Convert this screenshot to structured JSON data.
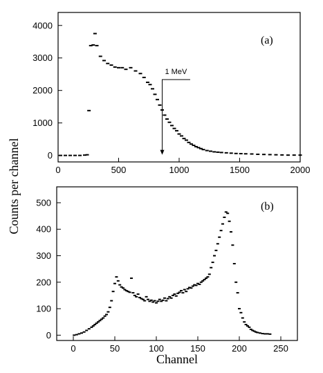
{
  "chart_data": [
    {
      "type": "scatter",
      "panel_label": "(a)",
      "xlabel": "",
      "ylabel": "",
      "xlim": [
        0,
        2000
      ],
      "ylim": [
        -200,
        4400
      ],
      "x_ticks": [
        0,
        500,
        1000,
        1500,
        2000
      ],
      "y_ticks": [
        0,
        1000,
        2000,
        3000,
        4000
      ],
      "x_tick_labels": [
        "0",
        "500",
        "1000",
        "1500",
        "2000"
      ],
      "y_tick_labels": [
        "0",
        "1000",
        "2000",
        "3000",
        "4000"
      ],
      "annotation": {
        "text": "1 MeV",
        "x": 860,
        "y": 0
      },
      "series": [
        {
          "points": [
            [
              20,
              0
            ],
            [
              60,
              0
            ],
            [
              100,
              0
            ],
            [
              140,
              0
            ],
            [
              180,
              0
            ],
            [
              220,
              10
            ],
            [
              240,
              20
            ],
            [
              255,
              1380
            ],
            [
              270,
              3380
            ],
            [
              290,
              3400
            ],
            [
              305,
              3750
            ],
            [
              320,
              3380
            ],
            [
              350,
              3050
            ],
            [
              380,
              2920
            ],
            [
              410,
              2830
            ],
            [
              440,
              2780
            ],
            [
              470,
              2720
            ],
            [
              500,
              2700
            ],
            [
              530,
              2700
            ],
            [
              560,
              2650
            ],
            [
              600,
              2700
            ],
            [
              640,
              2600
            ],
            [
              680,
              2520
            ],
            [
              710,
              2400
            ],
            [
              740,
              2250
            ],
            [
              760,
              2180
            ],
            [
              780,
              2050
            ],
            [
              800,
              1880
            ],
            [
              820,
              1720
            ],
            [
              840,
              1550
            ],
            [
              860,
              1400
            ],
            [
              880,
              1240
            ],
            [
              900,
              1120
            ],
            [
              920,
              1020
            ],
            [
              940,
              920
            ],
            [
              960,
              830
            ],
            [
              980,
              760
            ],
            [
              1000,
              660
            ],
            [
              1020,
              600
            ],
            [
              1040,
              520
            ],
            [
              1060,
              470
            ],
            [
              1080,
              400
            ],
            [
              1100,
              350
            ],
            [
              1120,
              310
            ],
            [
              1140,
              270
            ],
            [
              1160,
              240
            ],
            [
              1180,
              210
            ],
            [
              1200,
              180
            ],
            [
              1230,
              150
            ],
            [
              1260,
              130
            ],
            [
              1290,
              110
            ],
            [
              1320,
              100
            ],
            [
              1350,
              90
            ],
            [
              1390,
              80
            ],
            [
              1430,
              70
            ],
            [
              1470,
              60
            ],
            [
              1510,
              55
            ],
            [
              1550,
              50
            ],
            [
              1600,
              45
            ],
            [
              1650,
              35
            ],
            [
              1700,
              30
            ],
            [
              1750,
              25
            ],
            [
              1800,
              20
            ],
            [
              1850,
              15
            ],
            [
              1900,
              10
            ],
            [
              1950,
              10
            ],
            [
              2000,
              10
            ]
          ]
        }
      ]
    },
    {
      "type": "scatter",
      "panel_label": "(b)",
      "xlabel": "Channel",
      "ylabel": "Counts per channel",
      "xlim": [
        -20,
        270
      ],
      "ylim": [
        -20,
        560
      ],
      "x_ticks": [
        0,
        50,
        100,
        150,
        200,
        250
      ],
      "y_ticks": [
        0,
        100,
        200,
        300,
        400,
        500
      ],
      "x_tick_labels": [
        "0",
        "50",
        "100",
        "150",
        "200",
        "250"
      ],
      "y_tick_labels": [
        "0",
        "100",
        "200",
        "300",
        "400",
        "500"
      ],
      "series": [
        {
          "points": [
            [
              1,
              0
            ],
            [
              4,
              2
            ],
            [
              7,
              5
            ],
            [
              10,
              8
            ],
            [
              13,
              12
            ],
            [
              16,
              18
            ],
            [
              19,
              24
            ],
            [
              22,
              30
            ],
            [
              24,
              35
            ],
            [
              26,
              40
            ],
            [
              28,
              45
            ],
            [
              30,
              50
            ],
            [
              32,
              55
            ],
            [
              34,
              60
            ],
            [
              36,
              65
            ],
            [
              38,
              72
            ],
            [
              40,
              78
            ],
            [
              42,
              88
            ],
            [
              44,
              105
            ],
            [
              46,
              130
            ],
            [
              48,
              165
            ],
            [
              50,
              195
            ],
            [
              52,
              220
            ],
            [
              54,
              205
            ],
            [
              56,
              190
            ],
            [
              58,
              182
            ],
            [
              60,
              178
            ],
            [
              62,
              172
            ],
            [
              64,
              168
            ],
            [
              66,
              165
            ],
            [
              68,
              162
            ],
            [
              70,
              215
            ],
            [
              72,
              160
            ],
            [
              74,
              150
            ],
            [
              76,
              145
            ],
            [
              78,
              155
            ],
            [
              80,
              142
            ],
            [
              82,
              138
            ],
            [
              84,
              135
            ],
            [
              86,
              130
            ],
            [
              88,
              145
            ],
            [
              90,
              135
            ],
            [
              92,
              128
            ],
            [
              94,
              132
            ],
            [
              96,
              125
            ],
            [
              98,
              130
            ],
            [
              100,
              122
            ],
            [
              102,
              128
            ],
            [
              104,
              135
            ],
            [
              106,
              128
            ],
            [
              108,
              132
            ],
            [
              110,
              140
            ],
            [
              112,
              130
            ],
            [
              114,
              138
            ],
            [
              116,
              145
            ],
            [
              118,
              140
            ],
            [
              120,
              150
            ],
            [
              122,
              155
            ],
            [
              124,
              148
            ],
            [
              126,
              158
            ],
            [
              128,
              162
            ],
            [
              130,
              168
            ],
            [
              132,
              160
            ],
            [
              134,
              172
            ],
            [
              136,
              165
            ],
            [
              138,
              175
            ],
            [
              140,
              180
            ],
            [
              142,
              178
            ],
            [
              144,
              185
            ],
            [
              146,
              190
            ],
            [
              148,
              188
            ],
            [
              150,
              195
            ],
            [
              152,
              192
            ],
            [
              154,
              200
            ],
            [
              156,
              205
            ],
            [
              158,
              210
            ],
            [
              160,
              215
            ],
            [
              162,
              220
            ],
            [
              164,
              230
            ],
            [
              166,
              255
            ],
            [
              168,
              275
            ],
            [
              170,
              300
            ],
            [
              172,
              320
            ],
            [
              174,
              345
            ],
            [
              176,
              370
            ],
            [
              178,
              395
            ],
            [
              180,
              420
            ],
            [
              182,
              445
            ],
            [
              184,
              465
            ],
            [
              186,
              460
            ],
            [
              188,
              430
            ],
            [
              190,
              390
            ],
            [
              192,
              340
            ],
            [
              194,
              270
            ],
            [
              196,
              200
            ],
            [
              198,
              160
            ],
            [
              200,
              100
            ],
            [
              202,
              85
            ],
            [
              204,
              65
            ],
            [
              206,
              50
            ],
            [
              208,
              40
            ],
            [
              210,
              35
            ],
            [
              212,
              30
            ],
            [
              214,
              22
            ],
            [
              216,
              18
            ],
            [
              218,
              15
            ],
            [
              220,
              12
            ],
            [
              222,
              10
            ],
            [
              225,
              8
            ],
            [
              228,
              6
            ],
            [
              231,
              5
            ],
            [
              234,
              5
            ],
            [
              237,
              4
            ]
          ]
        }
      ]
    }
  ]
}
